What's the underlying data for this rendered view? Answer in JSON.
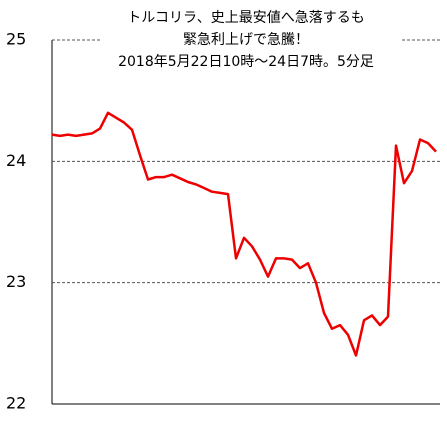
{
  "chart_data": {
    "type": "line",
    "title": [
      "トルコリラ、史上最安値へ急落するも",
      "緊急利上げで急騰！"
    ],
    "subtitle": "2018年5月22日10時～24日7時。5分足",
    "series": [
      {
        "color": "#ee0000",
        "values": [
          24.22,
          24.21,
          24.22,
          24.21,
          24.22,
          24.23,
          24.27,
          24.4,
          24.36,
          24.32,
          24.26,
          24.05,
          23.85,
          23.87,
          23.87,
          23.89,
          23.86,
          23.83,
          23.81,
          23.78,
          23.75,
          23.74,
          23.73,
          23.2,
          23.37,
          23.3,
          23.19,
          23.05,
          23.2,
          23.2,
          23.19,
          23.12,
          23.16,
          23.0,
          22.75,
          22.62,
          22.65,
          22.57,
          22.4,
          22.69,
          22.73,
          22.65,
          22.72,
          24.13,
          23.82,
          23.92,
          24.18,
          24.15,
          24.08
        ]
      }
    ],
    "ylim": [
      22,
      25
    ],
    "yticks": [
      22,
      23,
      24,
      25
    ],
    "grid": true
  }
}
